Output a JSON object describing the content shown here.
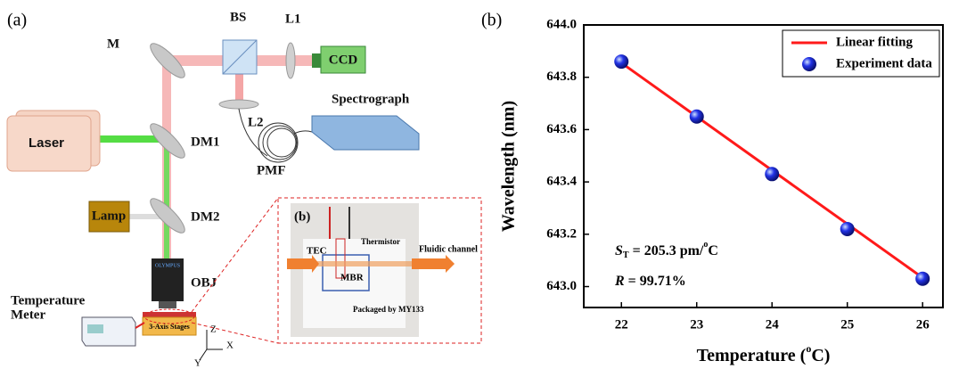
{
  "diagram": {
    "panel_label": "(a)",
    "labels": {
      "M": "M",
      "BS": "BS",
      "L1": "L1",
      "CCD": "CCD",
      "L2": "L2",
      "spectrograph": "Spectrograph",
      "laser": "Laser",
      "DM1": "DM1",
      "PMF": "PMF",
      "DM2": "DM2",
      "lamp": "Lamp",
      "OBJ": "OBJ",
      "objective_brand": "OLYMPUS",
      "meter_line1": "Temperature",
      "meter_line2": "Meter",
      "stages": "3-Axis Stages",
      "Z": "Z",
      "X": "X",
      "Y": "Y"
    },
    "inset": {
      "panel_label": "(b)",
      "TEC": "TEC",
      "thermistor": "Thermistor",
      "fluidic_channel": "Fluidic channel",
      "MBR": "MBR",
      "package": "Packaged by MY133"
    }
  },
  "chart_data": {
    "type": "line",
    "panel_label": "(b)",
    "x_label": {
      "text": "Temperature (",
      "sup": "o",
      "tail": "C)"
    },
    "y_label": "Wavelength (nm)",
    "xlim": [
      21.5,
      26.27
    ],
    "ylim": [
      642.92,
      644.0
    ],
    "xticks": [
      22,
      23,
      24,
      25,
      26
    ],
    "yticks": [
      {
        "value": 643.0,
        "label": "643.0"
      },
      {
        "value": 643.2,
        "label": "643.2"
      },
      {
        "value": 643.4,
        "label": "643.4"
      },
      {
        "value": 643.6,
        "label": "643.6"
      },
      {
        "value": 643.8,
        "label": "643.8"
      },
      {
        "value": 644.0,
        "label": "644.0"
      }
    ],
    "series": [
      {
        "name": "Linear fitting",
        "color": "#ff1a1a",
        "mode": "line",
        "x": [
          22,
          26
        ],
        "values": [
          643.855,
          643.034
        ]
      },
      {
        "name": "Experiment data",
        "color": "#1a2ee0",
        "mode": "markers",
        "x": [
          22,
          23,
          24,
          25,
          26
        ],
        "values": [
          643.86,
          643.65,
          643.43,
          643.22,
          643.03
        ]
      }
    ],
    "legend": "upper right",
    "annotations": [
      {
        "parts": [
          "S",
          "T",
          " = 205.3 pm/",
          "o",
          "C"
        ]
      },
      {
        "parts": [
          "R",
          " = 99.71%"
        ]
      }
    ]
  }
}
